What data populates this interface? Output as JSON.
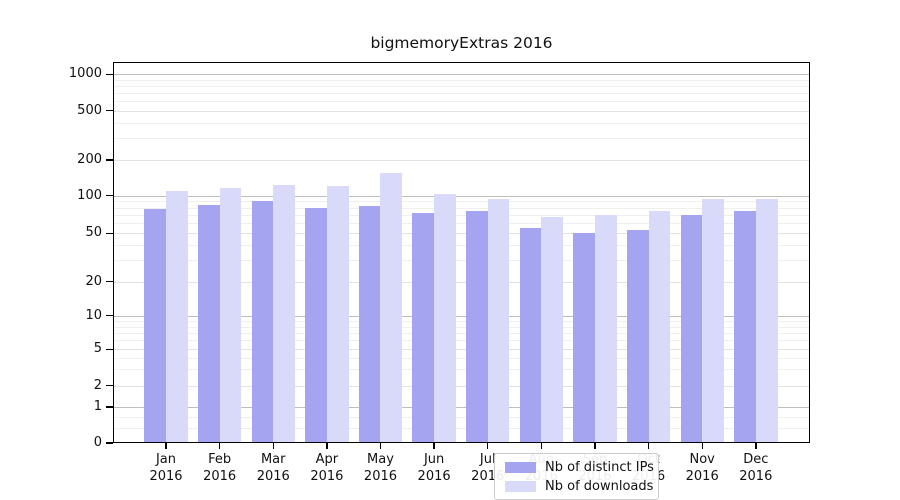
{
  "title": "bigmemoryExtras 2016",
  "chart_data": {
    "type": "bar",
    "title": "bigmemoryExtras 2016",
    "categories": [
      "Jan 2016",
      "Feb 2016",
      "Mar 2016",
      "Apr 2016",
      "May 2016",
      "Jun 2016",
      "Jul 2016",
      "Aug 2016",
      "Sep 2016",
      "Oct 2016",
      "Nov 2016",
      "Dec 2016"
    ],
    "series": [
      {
        "name": "Nb of distinct IPs",
        "color": "#a4a4f0",
        "values": [
          78,
          84,
          90,
          80,
          82,
          72,
          75,
          55,
          50,
          53,
          70,
          75
        ]
      },
      {
        "name": "Nb of downloads",
        "color": "#d9d9f9",
        "values": [
          110,
          115,
          122,
          120,
          155,
          104,
          94,
          68,
          70,
          75,
          94,
          93
        ]
      }
    ],
    "xlabel": "",
    "ylabel": "",
    "yscale": "log-like (symlog with 0 baseline)",
    "yticks": [
      0,
      1,
      2,
      5,
      10,
      20,
      50,
      100,
      200,
      500,
      1000
    ],
    "ylim": [
      0,
      1300
    ],
    "grid": true,
    "legend_position": "lower center"
  },
  "legend": {
    "items": [
      "Nb of distinct IPs",
      "Nb of downloads"
    ]
  },
  "colors": {
    "bar_dark": "#a4a4f0",
    "bar_light": "#d9d9f9",
    "grid_major": "#bdbdbd",
    "grid_labeled": "#e2e2e2",
    "grid_minor": "#efefef",
    "spine": "#000000",
    "text": "#111111"
  }
}
